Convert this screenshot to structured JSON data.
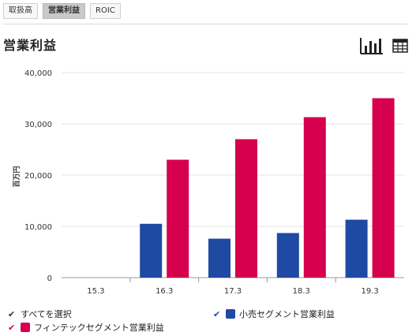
{
  "tabs": [
    "取扱高",
    "営業利益",
    "ROIC"
  ],
  "active_tab": 1,
  "page_title": "営業利益",
  "icons": {
    "chart_view": "bar-chart-icon",
    "table_view": "table-grid-icon"
  },
  "colors": {
    "retail": "#1f4aa3",
    "fintech": "#d6004f"
  },
  "legend": {
    "select_all": "すべてを選択",
    "retail": "小売セグメント営業利益",
    "fintech": "フィンテックセグメント営業利益"
  },
  "chart_data": {
    "type": "bar",
    "ylabel": "百万円",
    "ylim": [
      0,
      40000
    ],
    "yticks": [
      0,
      10000,
      20000,
      30000,
      40000
    ],
    "ytick_labels": [
      "0",
      "10,000",
      "20,000",
      "30,000",
      "40,000"
    ],
    "categories": [
      "15.3",
      "16.3",
      "17.3",
      "18.3",
      "19.3"
    ],
    "series": [
      {
        "name": "小売セグメント営業利益",
        "color": "#1f4aa3",
        "values": [
          null,
          10500,
          7600,
          8700,
          11300
        ]
      },
      {
        "name": "フィンテックセグメント営業利益",
        "color": "#d6004f",
        "values": [
          null,
          23000,
          27000,
          31300,
          35000
        ]
      }
    ]
  }
}
